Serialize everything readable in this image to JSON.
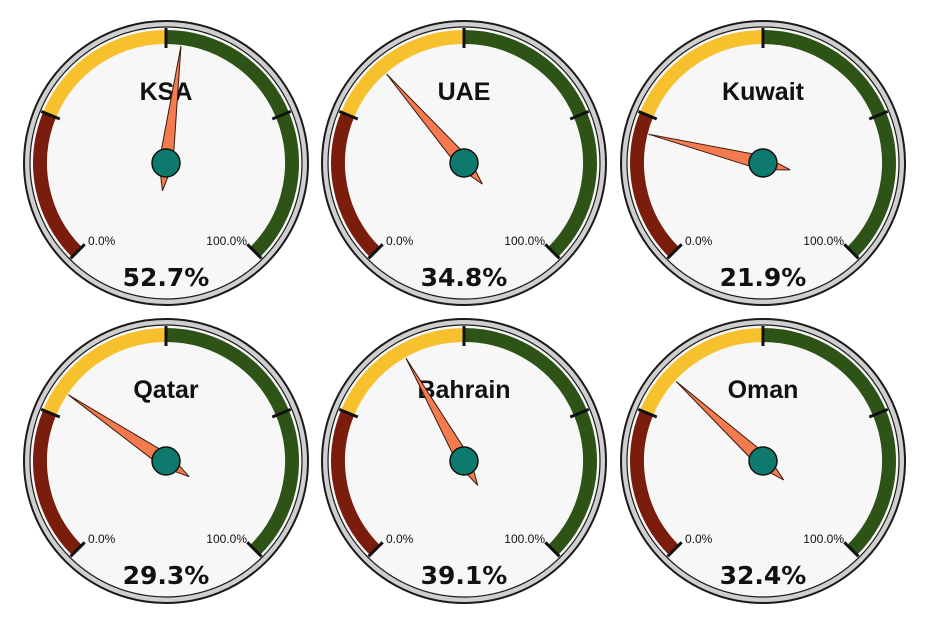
{
  "chart_data": {
    "type": "gauge",
    "range": [
      0,
      100
    ],
    "min_label": "0.0%",
    "max_label": "100.0%",
    "bands": [
      {
        "from": 0,
        "to": 25,
        "color": "#7a1d0c"
      },
      {
        "from": 25,
        "to": 50,
        "color": "#f7c12d"
      },
      {
        "from": 50,
        "to": 100,
        "color": "#2d5316"
      }
    ],
    "needle_color": "#f47a50",
    "hub_color": "#0e7a6e",
    "gauges": [
      {
        "title": "KSA",
        "value": 52.7,
        "value_label": "52.7%"
      },
      {
        "title": "UAE",
        "value": 34.8,
        "value_label": "34.8%"
      },
      {
        "title": "Kuwait",
        "value": 21.9,
        "value_label": "21.9%"
      },
      {
        "title": "Qatar",
        "value": 29.3,
        "value_label": "29.3%"
      },
      {
        "title": "Bahrain",
        "value": 39.1,
        "value_label": "39.1%"
      },
      {
        "title": "Oman",
        "value": 32.4,
        "value_label": "32.4%"
      }
    ]
  }
}
